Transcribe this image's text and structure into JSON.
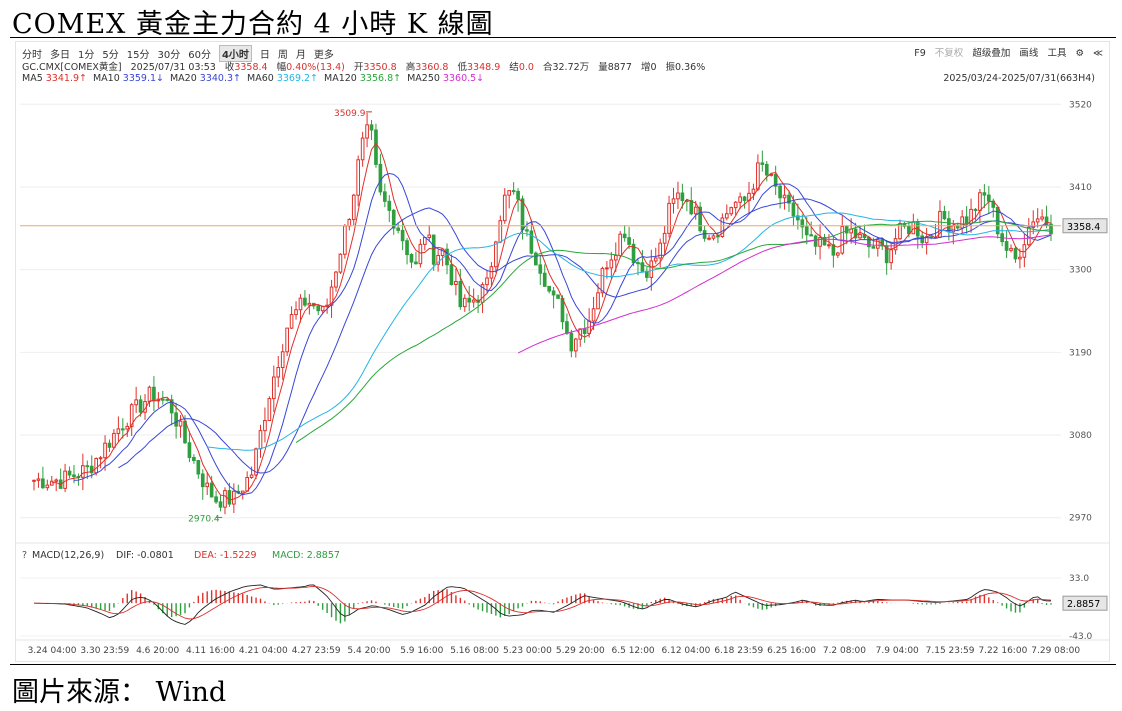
{
  "title": "COMEX 黃金主力合約 4 小時 K 線圖",
  "source": "圖片來源： Wind",
  "toolbar": {
    "periods": [
      "分时",
      "多日",
      "1分",
      "5分",
      "15分",
      "30分",
      "60分",
      "4小时",
      "日",
      "周",
      "月",
      "更多"
    ],
    "active_period": "4小时",
    "right": [
      "F9",
      "不复权",
      "超级叠加",
      "画线",
      "工具"
    ],
    "right_icons": [
      "gear-icon",
      "share-icon"
    ]
  },
  "quote": {
    "symbol": "GC.CMX[COMEX黄金]",
    "datetime": "2025/07/31 03:53",
    "close_label": "收",
    "close": "3358.4",
    "change_label": "幅",
    "change": "0.40%(13.4)",
    "open_label": "开",
    "open": "3350.8",
    "high_label": "高",
    "high": "3360.8",
    "low_label": "低",
    "low": "3348.9",
    "settle_label": "结",
    "settle": "0.0",
    "amount_label": "合",
    "amount": "32.72万",
    "volume_label": "量",
    "volume": "8877",
    "oi_change_label": "增",
    "oi_change": "0",
    "amplitude_label": "振",
    "amplitude": "0.36%"
  },
  "ma_legend": [
    {
      "label": "MA5",
      "value": "3341.9↑",
      "color": "#e0302a"
    },
    {
      "label": "MA10",
      "value": "3359.1↓",
      "color": "#3a47d6"
    },
    {
      "label": "MA20",
      "value": "3340.3↑",
      "color": "#3a47d6"
    },
    {
      "label": "MA60",
      "value": "3369.2↑",
      "color": "#27b4e6"
    },
    {
      "label": "MA120",
      "value": "3356.8↑",
      "color": "#28a83a"
    },
    {
      "label": "MA250",
      "value": "3360.5↓",
      "color": "#d22fd0"
    }
  ],
  "date_range": "2025/03/24-2025/07/31(663H4)",
  "macd_legend": {
    "params": "MACD(12,26,9)",
    "dif_label": "DIF:",
    "dif": "-0.0801",
    "dea_label": "DEA:",
    "dea": "-1.5229",
    "macd_label": "MACD:",
    "macd": "2.8857"
  },
  "colors": {
    "up": "#e0302a",
    "down": "#2e9e3e",
    "last_line": "#f0a860"
  },
  "chart_data": {
    "type": "candlestick",
    "y_ticks": [
      3520,
      3410,
      3300,
      3190,
      3080,
      2970
    ],
    "ylim": [
      2955,
      3535
    ],
    "last_price": "3358.4",
    "high_marker": "3509.9",
    "low_marker": "2970.4",
    "x_ticks": [
      "3.24 04:00",
      "3.30 23:59",
      "4.6 20:00",
      "4.11 16:00",
      "4.21 04:00",
      "4.27 23:59",
      "5.4 20:00",
      "5.9 16:00",
      "5.16 08:00",
      "5.23 00:00",
      "5.29 20:00",
      "6.5 12:00",
      "6.12 04:00",
      "6.18 23:59",
      "6.25 16:00",
      "7.2 08:00",
      "7.9 04:00",
      "7.15 23:59",
      "7.22 16:00",
      "7.29 08:00"
    ],
    "price_path": [
      [
        0,
        3020
      ],
      [
        3,
        3020
      ],
      [
        6,
        3035
      ],
      [
        10,
        3100
      ],
      [
        13,
        3135
      ],
      [
        15,
        3120
      ],
      [
        17,
        3060
      ],
      [
        19,
        3010
      ],
      [
        20,
        2995
      ],
      [
        22,
        2995
      ],
      [
        24,
        3030
      ],
      [
        26,
        3140
      ],
      [
        28,
        3230
      ],
      [
        30,
        3260
      ],
      [
        32,
        3240
      ],
      [
        34,
        3340
      ],
      [
        35,
        3390
      ],
      [
        36,
        3460
      ],
      [
        37,
        3490
      ],
      [
        38,
        3400
      ],
      [
        40,
        3360
      ],
      [
        42,
        3300
      ],
      [
        43,
        3350
      ],
      [
        44,
        3320
      ],
      [
        45,
        3325
      ],
      [
        46,
        3290
      ],
      [
        47,
        3250
      ],
      [
        48,
        3255
      ],
      [
        50,
        3280
      ],
      [
        51,
        3360
      ],
      [
        52,
        3400
      ],
      [
        53,
        3400
      ],
      [
        54,
        3350
      ],
      [
        56,
        3300
      ],
      [
        57,
        3260
      ],
      [
        58,
        3250
      ],
      [
        59,
        3200
      ],
      [
        60,
        3220
      ],
      [
        61,
        3230
      ],
      [
        62,
        3270
      ],
      [
        63,
        3310
      ],
      [
        64,
        3330
      ],
      [
        65,
        3355
      ],
      [
        66,
        3320
      ],
      [
        67,
        3300
      ],
      [
        68,
        3305
      ],
      [
        69,
        3330
      ],
      [
        70,
        3380
      ],
      [
        71,
        3400
      ],
      [
        72,
        3395
      ],
      [
        73,
        3370
      ],
      [
        74,
        3350
      ],
      [
        75,
        3350
      ],
      [
        76,
        3370
      ],
      [
        77,
        3390
      ],
      [
        78,
        3385
      ],
      [
        79,
        3410
      ],
      [
        80,
        3440
      ],
      [
        81,
        3420
      ],
      [
        82,
        3400
      ],
      [
        83,
        3380
      ],
      [
        84,
        3370
      ],
      [
        85,
        3340
      ],
      [
        86,
        3330
      ],
      [
        87,
        3330
      ],
      [
        88,
        3320
      ],
      [
        89,
        3345
      ],
      [
        90,
        3350
      ],
      [
        91,
        3340
      ],
      [
        92,
        3330
      ],
      [
        93,
        3330
      ],
      [
        94,
        3320
      ],
      [
        95,
        3345
      ],
      [
        96,
        3355
      ],
      [
        97,
        3360
      ],
      [
        98,
        3340
      ],
      [
        99,
        3350
      ],
      [
        100,
        3370
      ],
      [
        101,
        3360
      ],
      [
        102,
        3365
      ],
      [
        103,
        3370
      ],
      [
        104,
        3390
      ],
      [
        105,
        3400
      ],
      [
        106,
        3360
      ],
      [
        107,
        3330
      ],
      [
        108,
        3310
      ],
      [
        109,
        3340
      ],
      [
        110,
        3370
      ],
      [
        111,
        3370
      ],
      [
        112,
        3360
      ]
    ],
    "macd": {
      "ylim": [
        -43,
        33
      ],
      "y_ticks": [
        "33.0",
        "-43.0"
      ],
      "value_label": "2.8857",
      "path": [
        [
          0,
          0
        ],
        [
          4,
          -1
        ],
        [
          7,
          -6
        ],
        [
          8,
          -10
        ],
        [
          9,
          -14
        ],
        [
          10,
          -19
        ],
        [
          11,
          -16
        ],
        [
          12,
          -6
        ],
        [
          13,
          5
        ],
        [
          14,
          8
        ],
        [
          15,
          6
        ],
        [
          16,
          0
        ],
        [
          17,
          -10
        ],
        [
          18,
          -20
        ],
        [
          19,
          -25
        ],
        [
          20,
          -28
        ],
        [
          21,
          -22
        ],
        [
          22,
          -10
        ],
        [
          24,
          5
        ],
        [
          26,
          15
        ],
        [
          28,
          22
        ],
        [
          30,
          24
        ],
        [
          32,
          18
        ],
        [
          34,
          20
        ],
        [
          36,
          22
        ],
        [
          37,
          25
        ],
        [
          38,
          17
        ],
        [
          39,
          8
        ],
        [
          40,
          -5
        ],
        [
          41,
          -18
        ],
        [
          42,
          -15
        ],
        [
          43,
          -8
        ],
        [
          45,
          -3
        ],
        [
          47,
          -8
        ],
        [
          49,
          -15
        ],
        [
          50,
          -12
        ],
        [
          52,
          -2
        ],
        [
          53,
          8
        ],
        [
          55,
          22
        ],
        [
          57,
          20
        ],
        [
          59,
          8
        ],
        [
          60,
          2
        ],
        [
          61,
          -5
        ],
        [
          62,
          -14
        ],
        [
          63,
          -17
        ],
        [
          65,
          -15
        ],
        [
          66,
          -10
        ],
        [
          67,
          -9
        ],
        [
          69,
          -12
        ],
        [
          71,
          -2
        ],
        [
          73,
          10
        ],
        [
          74,
          8
        ],
        [
          76,
          5
        ],
        [
          78,
          2
        ],
        [
          80,
          -6
        ],
        [
          81,
          -8
        ],
        [
          82,
          -2
        ],
        [
          84,
          6
        ],
        [
          86,
          -1
        ],
        [
          88,
          -5
        ],
        [
          90,
          3
        ],
        [
          92,
          8
        ],
        [
          93,
          15
        ],
        [
          95,
          6
        ],
        [
          97,
          -3
        ],
        [
          99,
          -2
        ],
        [
          101,
          1
        ],
        [
          102,
          4
        ],
        [
          103,
          2
        ],
        [
          104,
          -2
        ],
        [
          106,
          -3
        ],
        [
          107,
          0
        ],
        [
          109,
          4
        ],
        [
          110,
          2
        ],
        [
          112,
          5
        ],
        [
          114,
          4
        ],
        [
          116,
          4
        ],
        [
          118,
          2
        ],
        [
          120,
          1
        ],
        [
          122,
          3
        ],
        [
          124,
          5
        ],
        [
          125,
          12
        ],
        [
          126,
          18
        ],
        [
          127,
          17
        ],
        [
          128,
          14
        ],
        [
          129,
          8
        ],
        [
          130,
          0
        ],
        [
          131,
          -4
        ],
        [
          132,
          3
        ],
        [
          133,
          10
        ],
        [
          134,
          3
        ],
        [
          135,
          3
        ]
      ]
    }
  }
}
